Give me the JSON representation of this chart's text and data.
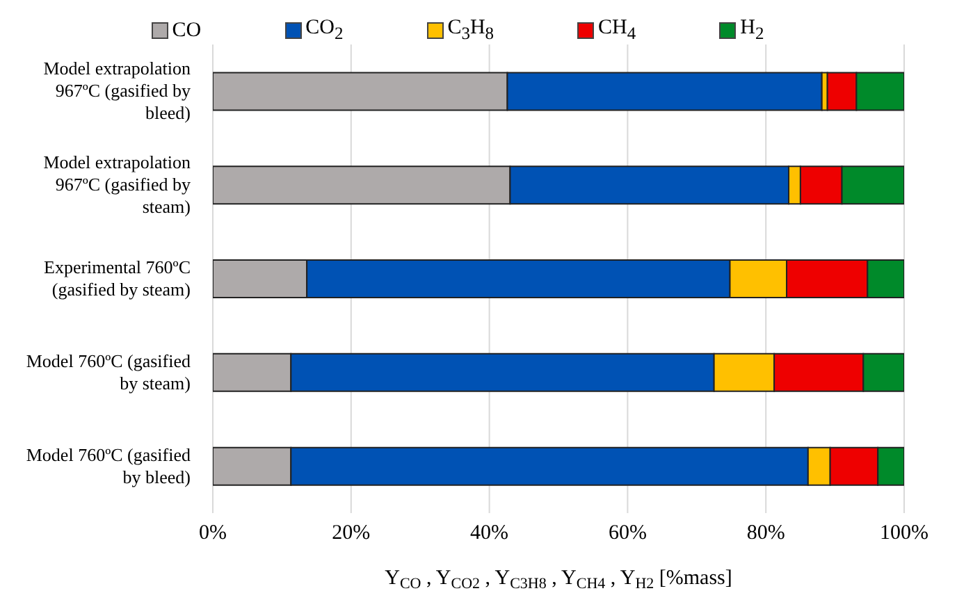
{
  "chart_data": {
    "type": "bar",
    "orientation": "horizontal",
    "stacked": true,
    "categories": [
      "Model extrapolation 967ºC (gasified by bleed)",
      "Model extrapolation 967ºC (gasified by steam)",
      "Experimental 760ºC (gasified by steam)",
      "Model 760ºC (gasified by steam)",
      "Model 760ºC (gasified by bleed)"
    ],
    "series": [
      {
        "name": "CO",
        "color": "#aeaaaa",
        "values": [
          42.6,
          43.0,
          13.6,
          11.3,
          11.3
        ]
      },
      {
        "name": "CO$_{2}$",
        "color": "#0052b4",
        "values": [
          45.5,
          40.3,
          61.2,
          61.2,
          74.8
        ]
      },
      {
        "name": "C$_{3}$H$_{8}$",
        "color": "#ffc000",
        "values": [
          0.8,
          1.7,
          8.2,
          8.7,
          3.2
        ]
      },
      {
        "name": "CH$_{4}$",
        "color": "#ee0000",
        "values": [
          4.2,
          6.0,
          11.7,
          12.9,
          6.9
        ]
      },
      {
        "name": "H$_{2}$",
        "color": "#008a2a",
        "values": [
          6.9,
          9.0,
          5.3,
          5.9,
          3.8
        ]
      }
    ],
    "xlim": [
      0,
      100
    ],
    "xticks": [
      {
        "value": 0,
        "label": "0%"
      },
      {
        "value": 20,
        "label": "20%"
      },
      {
        "value": 40,
        "label": "40%"
      },
      {
        "value": 60,
        "label": "60%"
      },
      {
        "value": 80,
        "label": "80%"
      },
      {
        "value": 100,
        "label": "100%"
      }
    ],
    "xlabel": "Y$_{CO}$ , Y$_{CO2}$ , Y$_{C3H8}$ , Y$_{CH4}$ , Y$_{H2}$  [%mass]",
    "grid": "x",
    "legend": "top"
  }
}
